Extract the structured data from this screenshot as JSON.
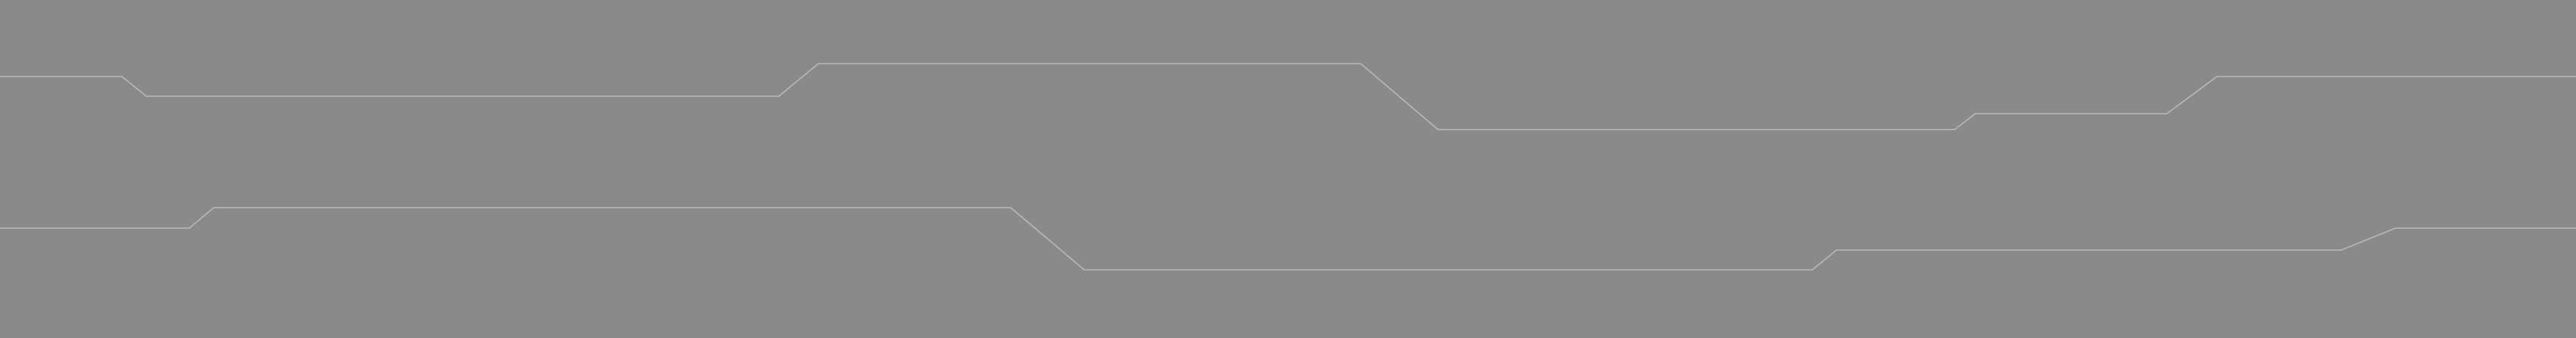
{
  "banner": {
    "background_color": "#8a8a8a",
    "line_color": "#b9b9b9",
    "lines": [
      {
        "name": "upper-trace-line"
      },
      {
        "name": "lower-trace-line"
      }
    ]
  }
}
